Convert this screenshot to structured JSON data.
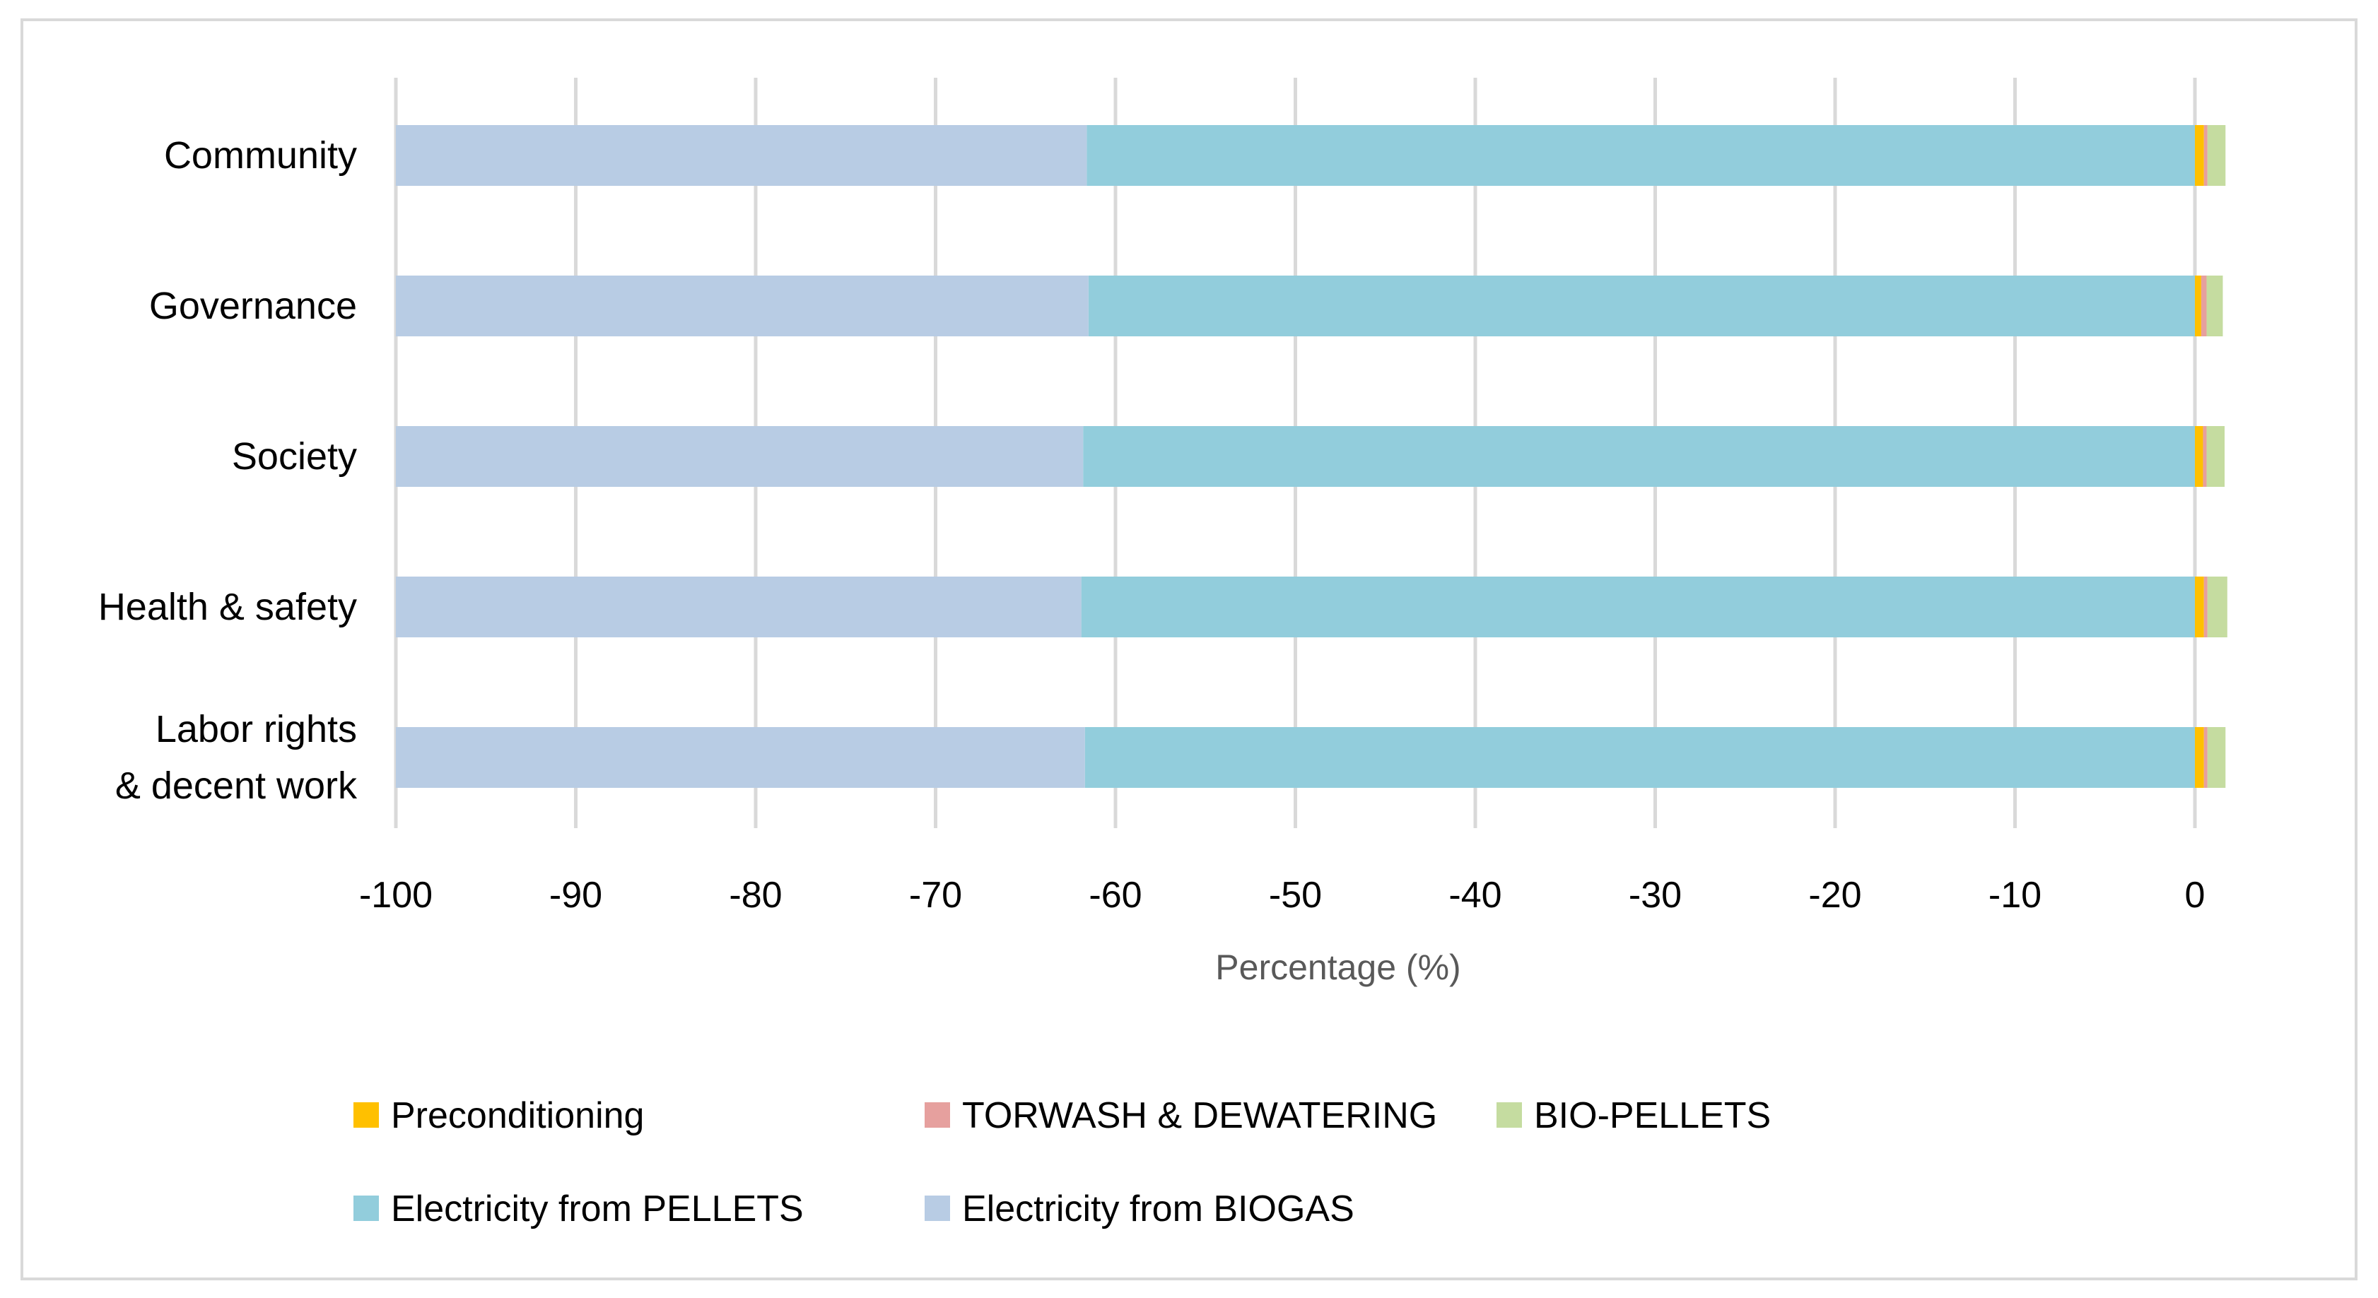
{
  "chart_data": {
    "type": "bar",
    "orientation": "horizontal",
    "stacked": true,
    "title": "",
    "xlabel": "Percentage (%)",
    "ylabel": "",
    "xlim": [
      -100,
      2
    ],
    "xticks": [
      -100,
      -90,
      -80,
      -70,
      -60,
      -50,
      -40,
      -30,
      -20,
      -10,
      0
    ],
    "grid": true,
    "legend_position": "bottom",
    "categories": [
      "Community",
      "Governance",
      "Society",
      "Health & safety",
      [
        "Labor rights",
        "& decent work"
      ]
    ],
    "series": [
      {
        "name": "Preconditioning",
        "color": "#FFC000",
        "values": [
          0.5,
          0.35,
          0.45,
          0.5,
          0.5
        ]
      },
      {
        "name": "TORWASH & DEWATERING",
        "color": "#E6A09E",
        "values": [
          0.2,
          0.3,
          0.2,
          0.2,
          0.2
        ]
      },
      {
        "name": "BIO-PELLETS",
        "color": "#C5DCA0",
        "values": [
          1.0,
          0.9,
          1.0,
          1.1,
          1.0
        ]
      },
      {
        "name": "Electricity from PELLETS",
        "color": "#92CDDC",
        "values": [
          -61.6,
          -61.5,
          -61.8,
          -61.9,
          -61.7
        ]
      },
      {
        "name": "Electricity from BIOGAS",
        "color": "#B8CCE4",
        "values": [
          -38.4,
          -38.5,
          -38.2,
          -38.1,
          -38.3
        ]
      }
    ]
  }
}
